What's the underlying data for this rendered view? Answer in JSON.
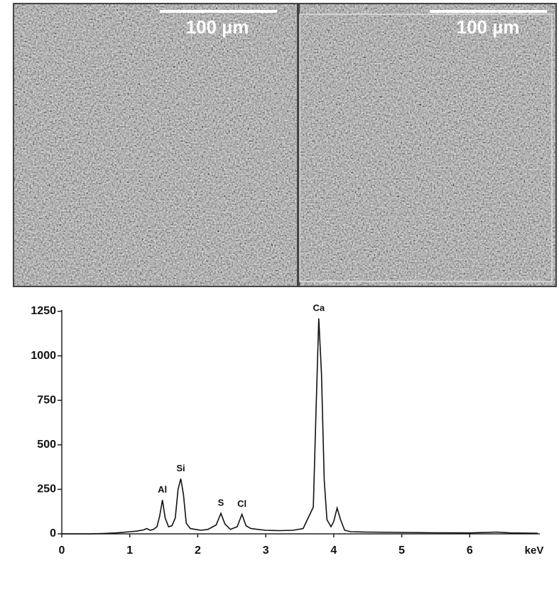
{
  "images": [
    {
      "scale_bar": "100 µm"
    },
    {
      "scale_bar": "100 µm"
    }
  ],
  "chart_data": {
    "type": "line",
    "xlabel": "keV",
    "x": [
      0,
      0.2,
      0.4,
      0.6,
      0.8,
      1.0,
      1.1,
      1.2,
      1.25,
      1.3,
      1.35,
      1.4,
      1.44,
      1.48,
      1.52,
      1.57,
      1.62,
      1.67,
      1.71,
      1.75,
      1.79,
      1.83,
      1.89,
      1.96,
      2.05,
      2.15,
      2.27,
      2.34,
      2.4,
      2.48,
      2.58,
      2.65,
      2.71,
      2.78,
      2.88,
      3.0,
      3.2,
      3.4,
      3.55,
      3.7,
      3.74,
      3.78,
      3.82,
      3.86,
      3.9,
      3.96,
      4.0,
      4.05,
      4.1,
      4.16,
      4.25,
      4.5,
      5.0,
      5.5,
      6.0,
      6.4,
      6.6,
      7.0
    ],
    "values": [
      0,
      0,
      0,
      2,
      5,
      12,
      15,
      22,
      30,
      20,
      25,
      40,
      100,
      190,
      90,
      40,
      45,
      90,
      250,
      310,
      220,
      60,
      30,
      25,
      20,
      25,
      50,
      115,
      55,
      25,
      40,
      110,
      45,
      30,
      25,
      20,
      18,
      20,
      30,
      150,
      700,
      1210,
      900,
      300,
      80,
      40,
      70,
      145,
      80,
      20,
      12,
      10,
      8,
      6,
      5,
      10,
      5,
      3
    ],
    "color": "#111111",
    "xlim": [
      0,
      7
    ],
    "xticks": [
      0,
      1,
      2,
      3,
      4,
      5,
      6
    ],
    "ylim": [
      0,
      1250
    ],
    "yticks": [
      0,
      250,
      500,
      750,
      1000,
      1250
    ],
    "annotations": [
      {
        "text": "Al",
        "x": 1.48
      },
      {
        "text": "Si",
        "x": 1.75
      },
      {
        "text": "S",
        "x": 2.34
      },
      {
        "text": "Cl",
        "x": 2.65
      },
      {
        "text": "Ca",
        "x": 3.78
      }
    ]
  }
}
